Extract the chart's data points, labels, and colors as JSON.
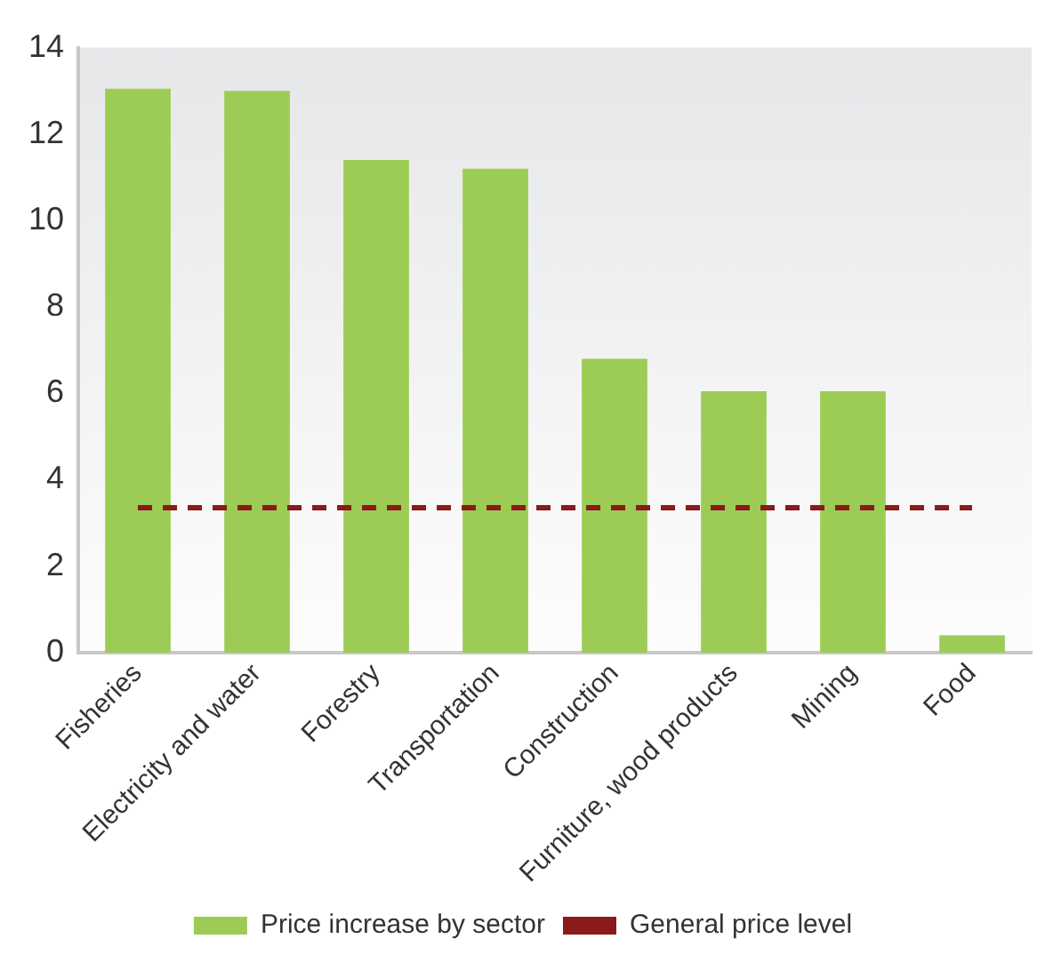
{
  "chart_data": {
    "type": "bar",
    "categories": [
      "Fisheries",
      "Electricity and water",
      "Forestry",
      "Transportation",
      "Construction",
      "Furniture, wood products",
      "Mining",
      "Food"
    ],
    "series": [
      {
        "name": "Price increase by sector",
        "color": "#9ccc55",
        "values": [
          13.05,
          13.0,
          11.4,
          11.2,
          6.8,
          6.05,
          6.05,
          0.4
        ]
      },
      {
        "name": "General price level",
        "type": "line",
        "color": "#8b1a1a",
        "line_style": "dashed",
        "marker": "none",
        "values": [
          3.35,
          3.35,
          3.35,
          3.35,
          3.35,
          3.35,
          3.35,
          3.35
        ]
      }
    ],
    "ylim": [
      0,
      14
    ],
    "yticks": [
      0,
      2,
      4,
      6,
      8,
      10,
      12,
      14
    ],
    "grid": false,
    "legend": "bottom"
  }
}
